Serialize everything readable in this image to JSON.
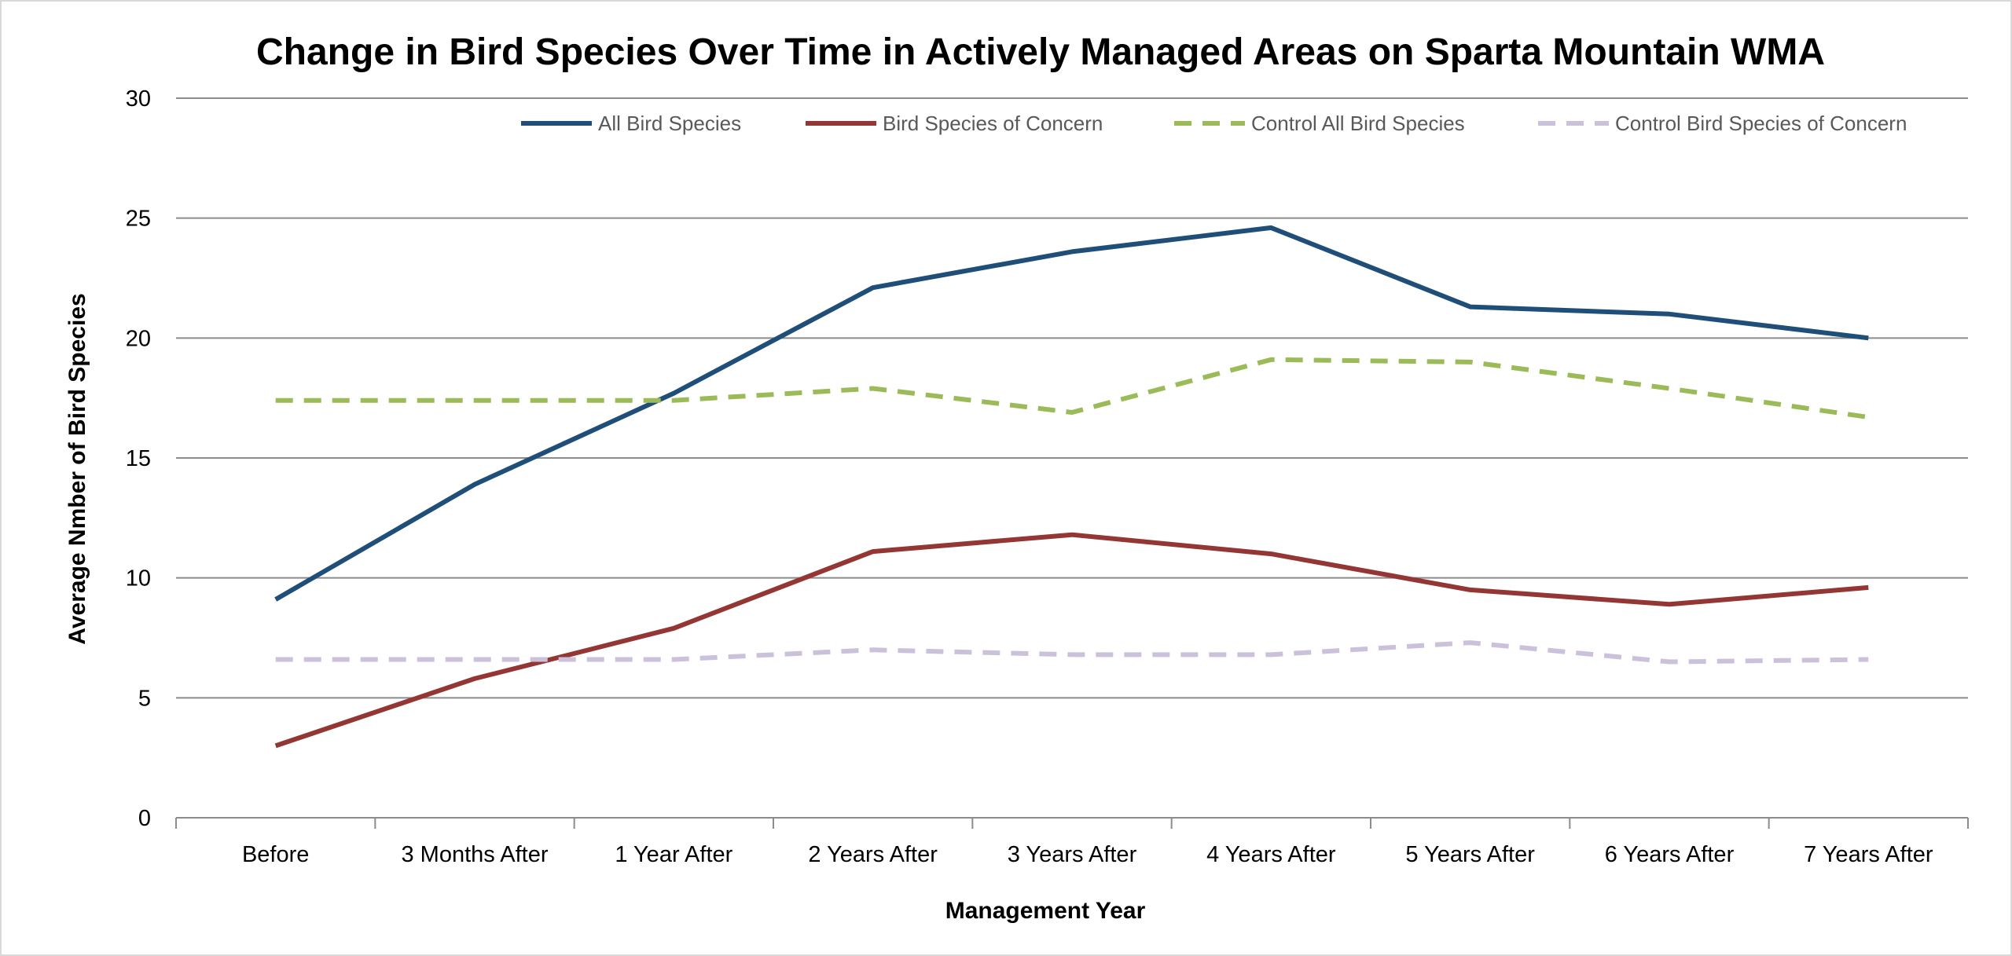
{
  "chart_data": {
    "type": "line",
    "title": "Change in Bird Species Over Time in Actively Managed Areas on Sparta Mountain WMA",
    "xlabel": "Management Year",
    "ylabel": "Average Nmber of Bird  Species",
    "ylim": [
      0,
      30
    ],
    "yticks": [
      0,
      5,
      10,
      15,
      20,
      25,
      30
    ],
    "grid": true,
    "legend_position": "top",
    "categories": [
      "Before",
      "3 Months After",
      "1 Year After",
      "2 Years After",
      "3 Years After",
      "4 Years After",
      "5 Years After",
      "6 Years After",
      "7 Years After"
    ],
    "series": [
      {
        "name": "All Bird Species",
        "values": [
          9.1,
          13.9,
          17.7,
          22.1,
          23.6,
          24.6,
          21.3,
          21.0,
          20.0
        ],
        "color": "#1f4e79",
        "dash": "solid"
      },
      {
        "name": "Bird Species of Concern",
        "values": [
          3.0,
          5.8,
          7.9,
          11.1,
          11.8,
          11.0,
          9.5,
          8.9,
          9.6
        ],
        "color": "#943634",
        "dash": "solid"
      },
      {
        "name": "Control All Bird Species",
        "values": [
          17.4,
          17.4,
          17.4,
          17.9,
          16.9,
          19.1,
          19.0,
          17.9,
          16.7
        ],
        "color": "#9bbb59",
        "dash": "dashed"
      },
      {
        "name": "Control Bird Species of Concern",
        "values": [
          6.6,
          6.6,
          6.6,
          7.0,
          6.8,
          6.8,
          7.3,
          6.5,
          6.6
        ],
        "color": "#ccc1da",
        "dash": "dashed"
      }
    ]
  }
}
